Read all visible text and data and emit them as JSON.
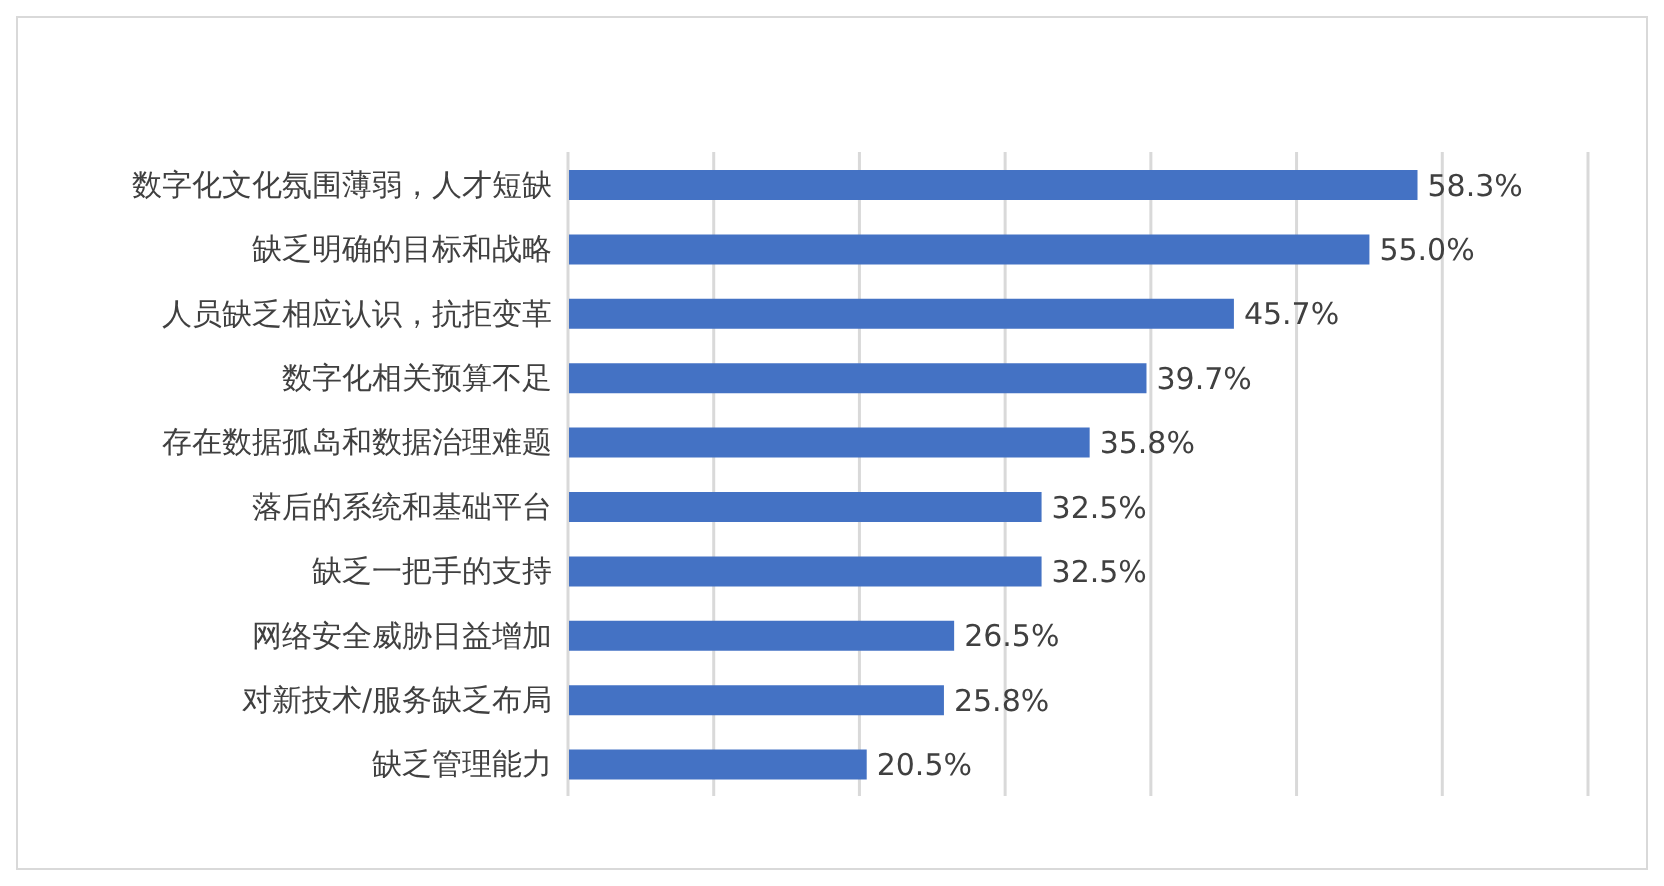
{
  "chart_data": {
    "type": "bar",
    "orientation": "horizontal",
    "categories": [
      "数字化文化氛围薄弱，人才短缺",
      "缺乏明确的目标和战略",
      "人员缺乏相应认识，抗拒变革",
      "数字化相关预算不足",
      "存在数据孤岛和数据治理难题",
      "落后的系统和基础平台",
      "缺乏一把手的支持",
      "网络安全威胁日益增加",
      "对新技术/服务缺乏布局",
      "缺乏管理能力"
    ],
    "values": [
      58.3,
      55.0,
      45.7,
      39.7,
      35.8,
      32.5,
      32.5,
      26.5,
      25.8,
      20.5
    ],
    "value_labels": [
      "58.3%",
      "55.0%",
      "45.7%",
      "39.7%",
      "35.8%",
      "32.5%",
      "32.5%",
      "26.5%",
      "25.8%",
      "20.5%"
    ],
    "color": "#4472c4",
    "xlim": [
      0,
      70
    ],
    "grid": "x",
    "tick_labels": "y"
  }
}
